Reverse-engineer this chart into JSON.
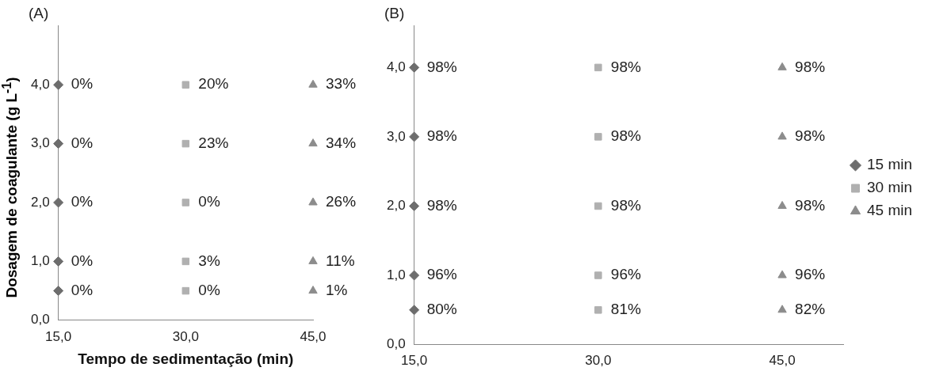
{
  "chart_data": [
    {
      "type": "scatter",
      "title": "(A)",
      "xlabel": "Tempo de sedimentação (min)",
      "ylabel": "Dosagem de coagulante (g L$^{-1}$)",
      "xlim": [
        15,
        45
      ],
      "ylim": [
        0,
        5
      ],
      "xticks": [
        {
          "value": 15,
          "label": "15,0"
        },
        {
          "value": 30,
          "label": "30,0"
        },
        {
          "value": 45,
          "label": "45,0"
        }
      ],
      "yticks": [
        {
          "value": 0,
          "label": "0,0"
        },
        {
          "value": 1,
          "label": "1,0"
        },
        {
          "value": 2,
          "label": "2,0"
        },
        {
          "value": 3,
          "label": "3,0"
        },
        {
          "value": 4,
          "label": "4,0"
        }
      ],
      "grid": false,
      "legend": false,
      "series": [
        {
          "color": "#6d6d6d",
          "marker": "diamond",
          "x": [
            15,
            15,
            15,
            15,
            15
          ],
          "values": [
            4,
            3,
            2,
            1,
            0.5
          ]
        },
        {
          "color": "#b0b0b0",
          "marker": "square",
          "x": [
            30,
            30,
            30,
            30,
            30
          ],
          "values": [
            4,
            3,
            2,
            1,
            0.5
          ]
        },
        {
          "color": "#8c8c8c",
          "marker": "triangle",
          "x": [
            45,
            45,
            45,
            45,
            45
          ],
          "values": [
            4,
            3,
            2,
            1,
            0.5
          ]
        }
      ],
      "annotations": [
        {
          "text": "0%",
          "x": 15,
          "y": 4
        },
        {
          "text": "0%",
          "x": 15,
          "y": 3
        },
        {
          "text": "0%",
          "x": 15,
          "y": 2
        },
        {
          "text": "0%",
          "x": 15,
          "y": 1
        },
        {
          "text": "0%",
          "x": 15,
          "y": 0.5
        },
        {
          "text": "20%",
          "x": 30,
          "y": 4
        },
        {
          "text": "23%",
          "x": 30,
          "y": 3
        },
        {
          "text": "0%",
          "x": 30,
          "y": 2
        },
        {
          "text": "3%",
          "x": 30,
          "y": 1
        },
        {
          "text": "0%",
          "x": 30,
          "y": 0.5
        },
        {
          "text": "33%",
          "x": 45,
          "y": 4
        },
        {
          "text": "34%",
          "x": 45,
          "y": 3
        },
        {
          "text": "26%",
          "x": 45,
          "y": 2
        },
        {
          "text": "11%",
          "x": 45,
          "y": 1
        },
        {
          "text": "1%",
          "x": 45,
          "y": 0.5
        }
      ]
    },
    {
      "type": "scatter",
      "title": "(B)",
      "xlim": [
        15,
        50
      ],
      "ylim": [
        0,
        4.6
      ],
      "xticks": [
        {
          "value": 15,
          "label": "15,0"
        },
        {
          "value": 30,
          "label": "30,0"
        },
        {
          "value": 45,
          "label": "45,0"
        }
      ],
      "yticks": [
        {
          "value": 0,
          "label": "0,0"
        },
        {
          "value": 1,
          "label": "1,0"
        },
        {
          "value": 2,
          "label": "2,0"
        },
        {
          "value": 3,
          "label": "3,0"
        },
        {
          "value": 4,
          "label": "4,0"
        }
      ],
      "grid": false,
      "legend": "right",
      "series": [
        {
          "name": "15 min",
          "color": "#6d6d6d",
          "marker": "diamond",
          "x": [
            15,
            15,
            15,
            15,
            15
          ],
          "values": [
            4,
            3,
            2,
            1,
            0.5
          ]
        },
        {
          "name": "30 min",
          "color": "#b0b0b0",
          "marker": "square",
          "x": [
            30,
            30,
            30,
            30,
            30
          ],
          "values": [
            4,
            3,
            2,
            1,
            0.5
          ]
        },
        {
          "name": "45 min",
          "color": "#8c8c8c",
          "marker": "triangle",
          "x": [
            45,
            45,
            45,
            45,
            45
          ],
          "values": [
            4,
            3,
            2,
            1,
            0.5
          ]
        }
      ],
      "annotations": [
        {
          "text": "98%",
          "x": 15,
          "y": 4
        },
        {
          "text": "98%",
          "x": 15,
          "y": 3
        },
        {
          "text": "98%",
          "x": 15,
          "y": 2
        },
        {
          "text": "96%",
          "x": 15,
          "y": 1
        },
        {
          "text": "80%",
          "x": 15,
          "y": 0.5
        },
        {
          "text": "98%",
          "x": 30,
          "y": 4
        },
        {
          "text": "98%",
          "x": 30,
          "y": 3
        },
        {
          "text": "98%",
          "x": 30,
          "y": 2
        },
        {
          "text": "96%",
          "x": 30,
          "y": 1
        },
        {
          "text": "81%",
          "x": 30,
          "y": 0.5
        },
        {
          "text": "98%",
          "x": 45,
          "y": 4
        },
        {
          "text": "98%",
          "x": 45,
          "y": 3
        },
        {
          "text": "98%",
          "x": 45,
          "y": 2
        },
        {
          "text": "96%",
          "x": 45,
          "y": 1
        },
        {
          "text": "82%",
          "x": 45,
          "y": 0.5
        }
      ]
    }
  ]
}
